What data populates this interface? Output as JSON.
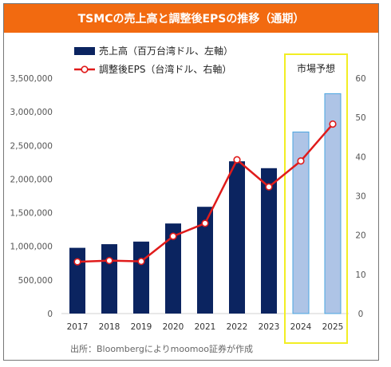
{
  "header": {
    "title": "TSMCの売上高と調整後EPSの推移（通期）"
  },
  "chart_data": {
    "type": "bar",
    "categories": [
      "2017",
      "2018",
      "2019",
      "2020",
      "2021",
      "2022",
      "2023",
      "2024",
      "2025"
    ],
    "series": [
      {
        "name": "売上高（百万台湾ドル、左軸）",
        "type": "bar",
        "axis": "left",
        "values": [
          977447,
          1031474,
          1069985,
          1339255,
          1587415,
          2263891,
          2161736,
          2700000,
          3270000
        ],
        "color": "#0b2460",
        "forecast_color": "#aec4e6",
        "forecast_border": "#4aa6e0"
      },
      {
        "name": "調整後EPS（台湾ドル、右軸）",
        "type": "line",
        "axis": "right",
        "values": [
          13.2,
          13.5,
          13.3,
          19.7,
          23.0,
          39.2,
          32.3,
          38.9,
          48.3
        ],
        "color": "#e01b1b"
      }
    ],
    "forecast_from_index": 7,
    "forecast_label": "市場予想",
    "left_axis": {
      "min": 0,
      "max": 3500000,
      "step": 500000,
      "ticks": [
        "0",
        "500,000",
        "1,000,000",
        "1,500,000",
        "2,000,000",
        "2,500,000",
        "3,000,000",
        "3,500,000"
      ]
    },
    "right_axis": {
      "min": 0,
      "max": 60,
      "step": 10,
      "ticks": [
        "0",
        "10",
        "20",
        "30",
        "40",
        "50",
        "60"
      ]
    },
    "legend_position": "top-left",
    "source": "出所：Bloombergによりmoomoo証券が作成"
  },
  "colors": {
    "title_bg": "#f26a10",
    "highlight_box": "#f2ee24",
    "axis_text": "#555555"
  }
}
